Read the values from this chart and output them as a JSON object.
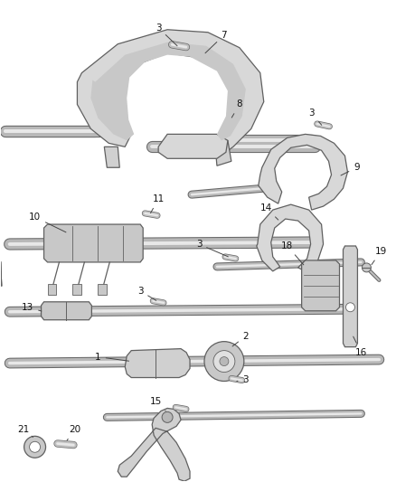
{
  "bg_color": "#ffffff",
  "line_color": "#606060",
  "label_color": "#222222",
  "fig_width": 4.38,
  "fig_height": 5.33,
  "dpi": 100,
  "rod_color": "#c8c8c8",
  "rod_edge": "#707070",
  "part_face": "#e8e8e8",
  "part_edge": "#606060"
}
